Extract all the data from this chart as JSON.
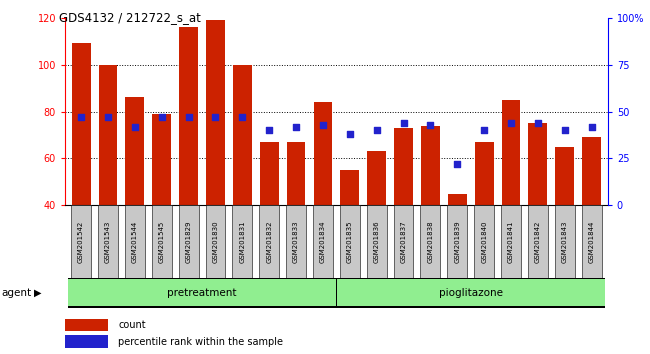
{
  "title": "GDS4132 / 212722_s_at",
  "samples": [
    "GSM201542",
    "GSM201543",
    "GSM201544",
    "GSM201545",
    "GSM201829",
    "GSM201830",
    "GSM201831",
    "GSM201832",
    "GSM201833",
    "GSM201834",
    "GSM201835",
    "GSM201836",
    "GSM201837",
    "GSM201838",
    "GSM201839",
    "GSM201840",
    "GSM201841",
    "GSM201842",
    "GSM201843",
    "GSM201844"
  ],
  "counts": [
    109,
    100,
    86,
    79,
    116,
    119,
    100,
    67,
    67,
    84,
    55,
    63,
    73,
    74,
    45,
    67,
    85,
    75,
    65,
    69
  ],
  "percentiles": [
    47,
    47,
    42,
    47,
    47,
    47,
    47,
    40,
    42,
    43,
    38,
    40,
    44,
    43,
    22,
    40,
    44,
    44,
    40,
    42
  ],
  "ylim_left": [
    40,
    120
  ],
  "ylim_right": [
    0,
    100
  ],
  "yticks_left": [
    40,
    60,
    80,
    100,
    120
  ],
  "yticks_right": [
    0,
    25,
    50,
    75,
    100
  ],
  "yticklabels_right": [
    "0",
    "25",
    "50",
    "75",
    "100%"
  ],
  "bar_color": "#cc2200",
  "dot_color": "#2222cc",
  "n_pretreatment": 10,
  "n_pioglitazone": 10,
  "agent_label": "agent",
  "pretreatment_label": "pretreatment",
  "pioglitazone_label": "pioglitazone",
  "legend_count_label": "count",
  "legend_pct_label": "percentile rank within the sample",
  "bar_width": 0.7,
  "group_color": "#90ee90",
  "tick_label_bg": "#c8c8c8"
}
